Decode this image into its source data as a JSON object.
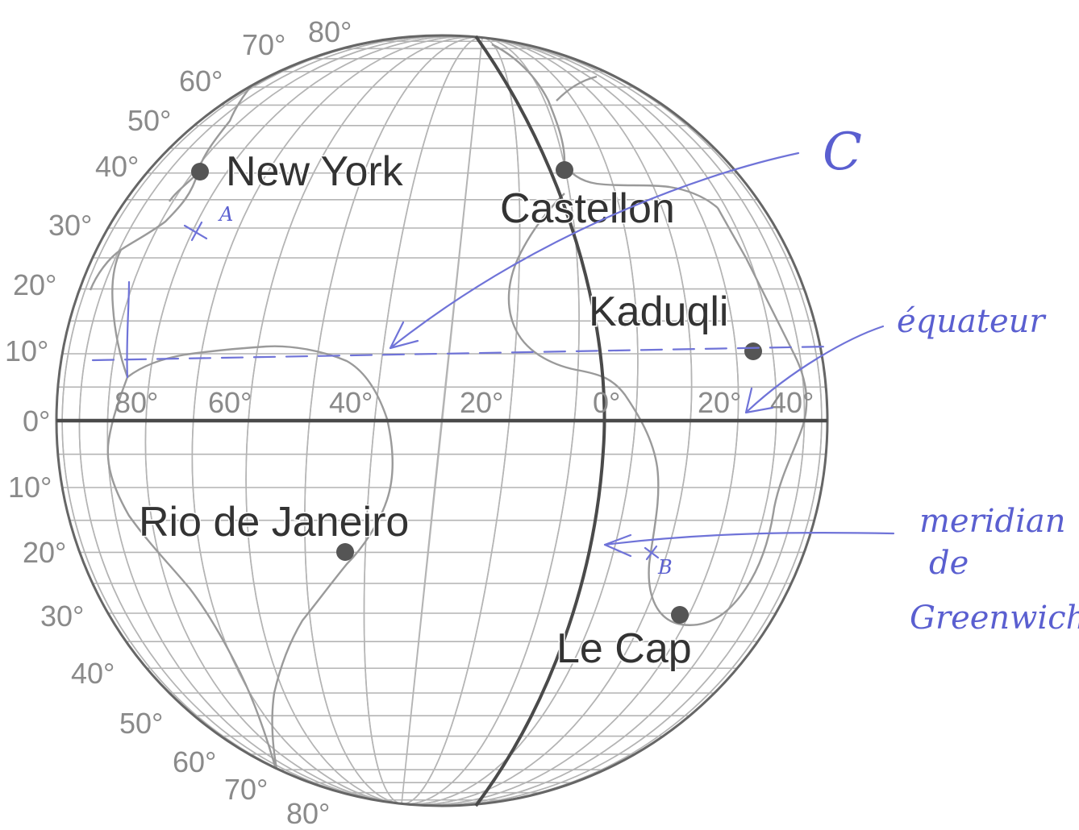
{
  "latitude_labels_north": [
    "80°",
    "70°",
    "60°",
    "50°",
    "40°",
    "30°",
    "20°",
    "10°"
  ],
  "latitude_label_equator": "0°",
  "latitude_labels_south": [
    "10°",
    "20°",
    "30°",
    "40°",
    "50°",
    "60°",
    "70°",
    "80°"
  ],
  "longitude_labels": [
    "80°",
    "60°",
    "40°",
    "20°",
    "0°",
    "20°",
    "40°"
  ],
  "cities": {
    "new_york": "New York",
    "castellon": "Castellon",
    "kaduqli": "Kaduqli",
    "rio": "Rio de Janeiro",
    "le_cap": "Le Cap"
  },
  "annotations": {
    "point_a": "A",
    "point_b": "B",
    "letter_c": "C",
    "equator_note": "équateur",
    "meridian_note_line1": "meridian",
    "meridian_note_line2": "de",
    "meridian_note_line3": "Greenwich"
  },
  "colors": {
    "globe_outline": "#666666",
    "grid": "#b4b4b4",
    "city_dot": "#555555",
    "pen_ink": "#5a5fd0"
  }
}
